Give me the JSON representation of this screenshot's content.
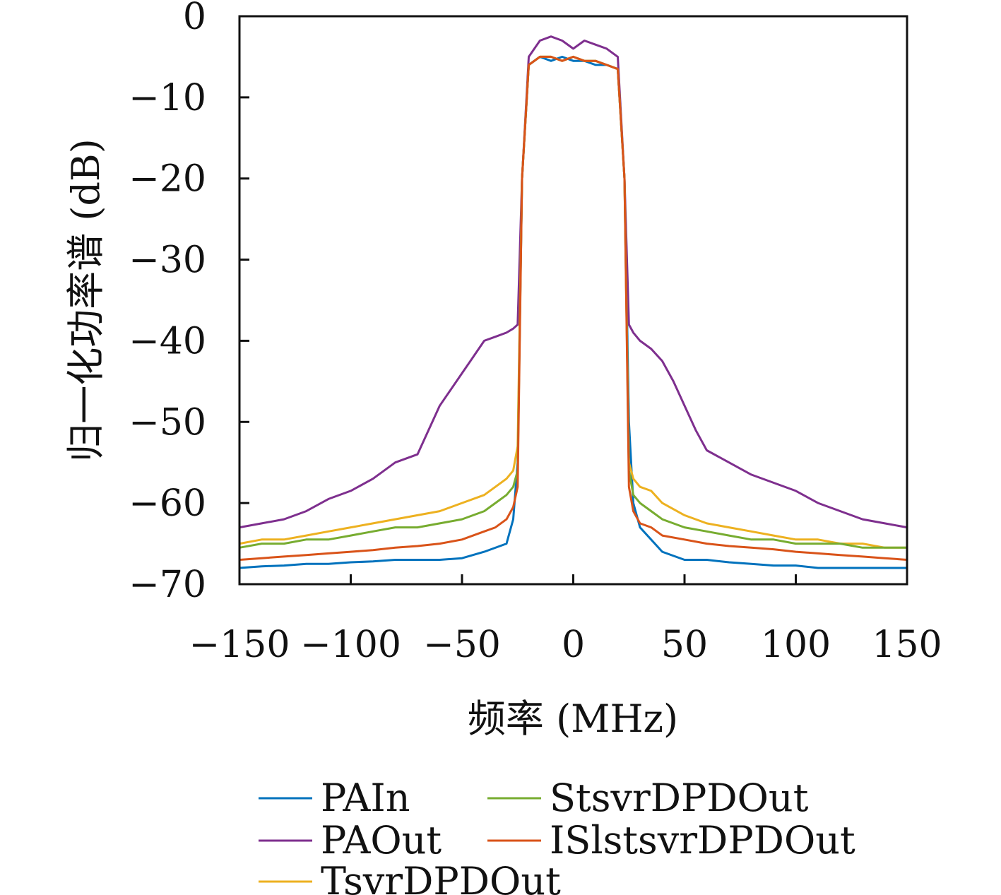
{
  "chart_data": {
    "type": "line",
    "title": "",
    "xlabel": "频率 (MHz)",
    "ylabel": "归一化功率谱 (dB)",
    "xlim": [
      -150,
      150
    ],
    "ylim": [
      -70,
      0
    ],
    "x_ticks": [
      -150,
      -100,
      -50,
      0,
      50,
      100,
      150
    ],
    "x_tick_labels": [
      "−150",
      "−100",
      "−50",
      "0",
      "50",
      "100",
      "150"
    ],
    "y_ticks": [
      0,
      -10,
      -20,
      -30,
      -40,
      -50,
      -60,
      -70
    ],
    "y_tick_labels": [
      "0",
      "−10",
      "−20",
      "−30",
      "−40",
      "−50",
      "−60",
      "−70"
    ],
    "grid": false,
    "legend_position": "bottom",
    "series": [
      {
        "name": "PAIn",
        "color": "#0072BD",
        "x": [
          -150,
          -140,
          -130,
          -120,
          -110,
          -100,
          -90,
          -80,
          -70,
          -60,
          -50,
          -40,
          -30,
          -27,
          -25,
          -23,
          -20,
          -15,
          -10,
          -5,
          0,
          5,
          10,
          15,
          20,
          23,
          25,
          27,
          30,
          40,
          50,
          60,
          70,
          80,
          90,
          100,
          110,
          120,
          130,
          140,
          150
        ],
        "y": [
          -68,
          -67.8,
          -67.7,
          -67.5,
          -67.5,
          -67.3,
          -67.2,
          -67,
          -67,
          -67,
          -66.8,
          -66,
          -65,
          -62,
          -55,
          -20,
          -6,
          -5,
          -5.5,
          -5,
          -5.5,
          -5.5,
          -6,
          -6,
          -6.5,
          -20,
          -50,
          -60,
          -63,
          -66,
          -67,
          -67,
          -67.3,
          -67.5,
          -67.7,
          -67.7,
          -68,
          -68,
          -68,
          -68,
          -68
        ]
      },
      {
        "name": "PAOut",
        "color": "#7E2F8E",
        "x": [
          -150,
          -140,
          -130,
          -120,
          -110,
          -100,
          -90,
          -80,
          -70,
          -60,
          -55,
          -50,
          -45,
          -40,
          -35,
          -30,
          -27,
          -25,
          -23,
          -20,
          -15,
          -10,
          -5,
          0,
          5,
          10,
          15,
          20,
          23,
          25,
          27,
          30,
          35,
          40,
          45,
          50,
          55,
          60,
          70,
          80,
          90,
          100,
          110,
          120,
          130,
          140,
          150
        ],
        "y": [
          -63,
          -62.5,
          -62,
          -61,
          -59.5,
          -58.5,
          -57,
          -55,
          -54,
          -48,
          -46,
          -44,
          -42,
          -40,
          -39.5,
          -39,
          -38.5,
          -38,
          -20,
          -5,
          -3,
          -2.5,
          -3,
          -4,
          -3,
          -3.5,
          -4,
          -5,
          -20,
          -38,
          -39,
          -40,
          -41,
          -42.5,
          -45,
          -48,
          -51,
          -53.5,
          -55,
          -56.5,
          -57.5,
          -58.5,
          -60,
          -61,
          -62,
          -62.5,
          -63
        ]
      },
      {
        "name": "TsvrDPDOut",
        "color": "#EDB120",
        "x": [
          -150,
          -140,
          -130,
          -120,
          -110,
          -100,
          -90,
          -80,
          -70,
          -60,
          -50,
          -40,
          -35,
          -30,
          -27,
          -25,
          -23,
          -20,
          -15,
          -10,
          -5,
          0,
          5,
          10,
          15,
          20,
          23,
          25,
          27,
          30,
          35,
          40,
          50,
          60,
          70,
          80,
          90,
          100,
          110,
          120,
          130,
          140,
          150
        ],
        "y": [
          -65,
          -64.5,
          -64.5,
          -64,
          -63.5,
          -63,
          -62.5,
          -62,
          -61.5,
          -61,
          -60,
          -59,
          -58,
          -57,
          -56,
          -53,
          -20,
          -6,
          -5,
          -5,
          -5.5,
          -5,
          -5.5,
          -5.5,
          -6,
          -6.5,
          -20,
          -55,
          -57,
          -58,
          -58.5,
          -60,
          -61.5,
          -62.5,
          -63,
          -63.5,
          -64,
          -64.5,
          -64.5,
          -65,
          -65,
          -65.5,
          -65.5
        ]
      },
      {
        "name": "StsvrDPDOut",
        "color": "#77AC30",
        "x": [
          -150,
          -140,
          -130,
          -120,
          -110,
          -100,
          -90,
          -80,
          -70,
          -60,
          -50,
          -40,
          -35,
          -30,
          -27,
          -25,
          -23,
          -20,
          -15,
          -10,
          -5,
          0,
          5,
          10,
          15,
          20,
          23,
          25,
          27,
          30,
          35,
          40,
          50,
          60,
          70,
          80,
          90,
          100,
          110,
          120,
          130,
          140,
          150
        ],
        "y": [
          -65.5,
          -65,
          -65,
          -64.5,
          -64.5,
          -64,
          -63.5,
          -63,
          -63,
          -62.5,
          -62,
          -61,
          -60,
          -59,
          -58,
          -56,
          -20,
          -6,
          -5,
          -5,
          -5.5,
          -5,
          -5.5,
          -5.5,
          -6,
          -6.5,
          -20,
          -56,
          -59,
          -60,
          -61,
          -62,
          -63,
          -63.5,
          -64,
          -64.5,
          -64.5,
          -65,
          -65,
          -65,
          -65.5,
          -65.5,
          -65.5
        ]
      },
      {
        "name": "ISlstsvrDPDOut",
        "color": "#D95319",
        "x": [
          -150,
          -140,
          -130,
          -120,
          -110,
          -100,
          -90,
          -80,
          -70,
          -60,
          -50,
          -40,
          -35,
          -30,
          -27,
          -25,
          -23,
          -20,
          -15,
          -10,
          -5,
          0,
          5,
          10,
          15,
          20,
          23,
          25,
          27,
          30,
          35,
          40,
          50,
          60,
          70,
          80,
          90,
          100,
          110,
          120,
          130,
          140,
          150
        ],
        "y": [
          -67,
          -66.8,
          -66.6,
          -66.4,
          -66.2,
          -66,
          -65.8,
          -65.5,
          -65.3,
          -65,
          -64.5,
          -63.5,
          -63,
          -62,
          -60.5,
          -58,
          -20,
          -6,
          -5,
          -5,
          -5.5,
          -5,
          -5.5,
          -5.5,
          -6,
          -6.5,
          -20,
          -58,
          -61,
          -62.5,
          -63,
          -64,
          -64.5,
          -65,
          -65.3,
          -65.5,
          -65.7,
          -66,
          -66.2,
          -66.4,
          -66.6,
          -66.8,
          -67
        ]
      }
    ]
  }
}
